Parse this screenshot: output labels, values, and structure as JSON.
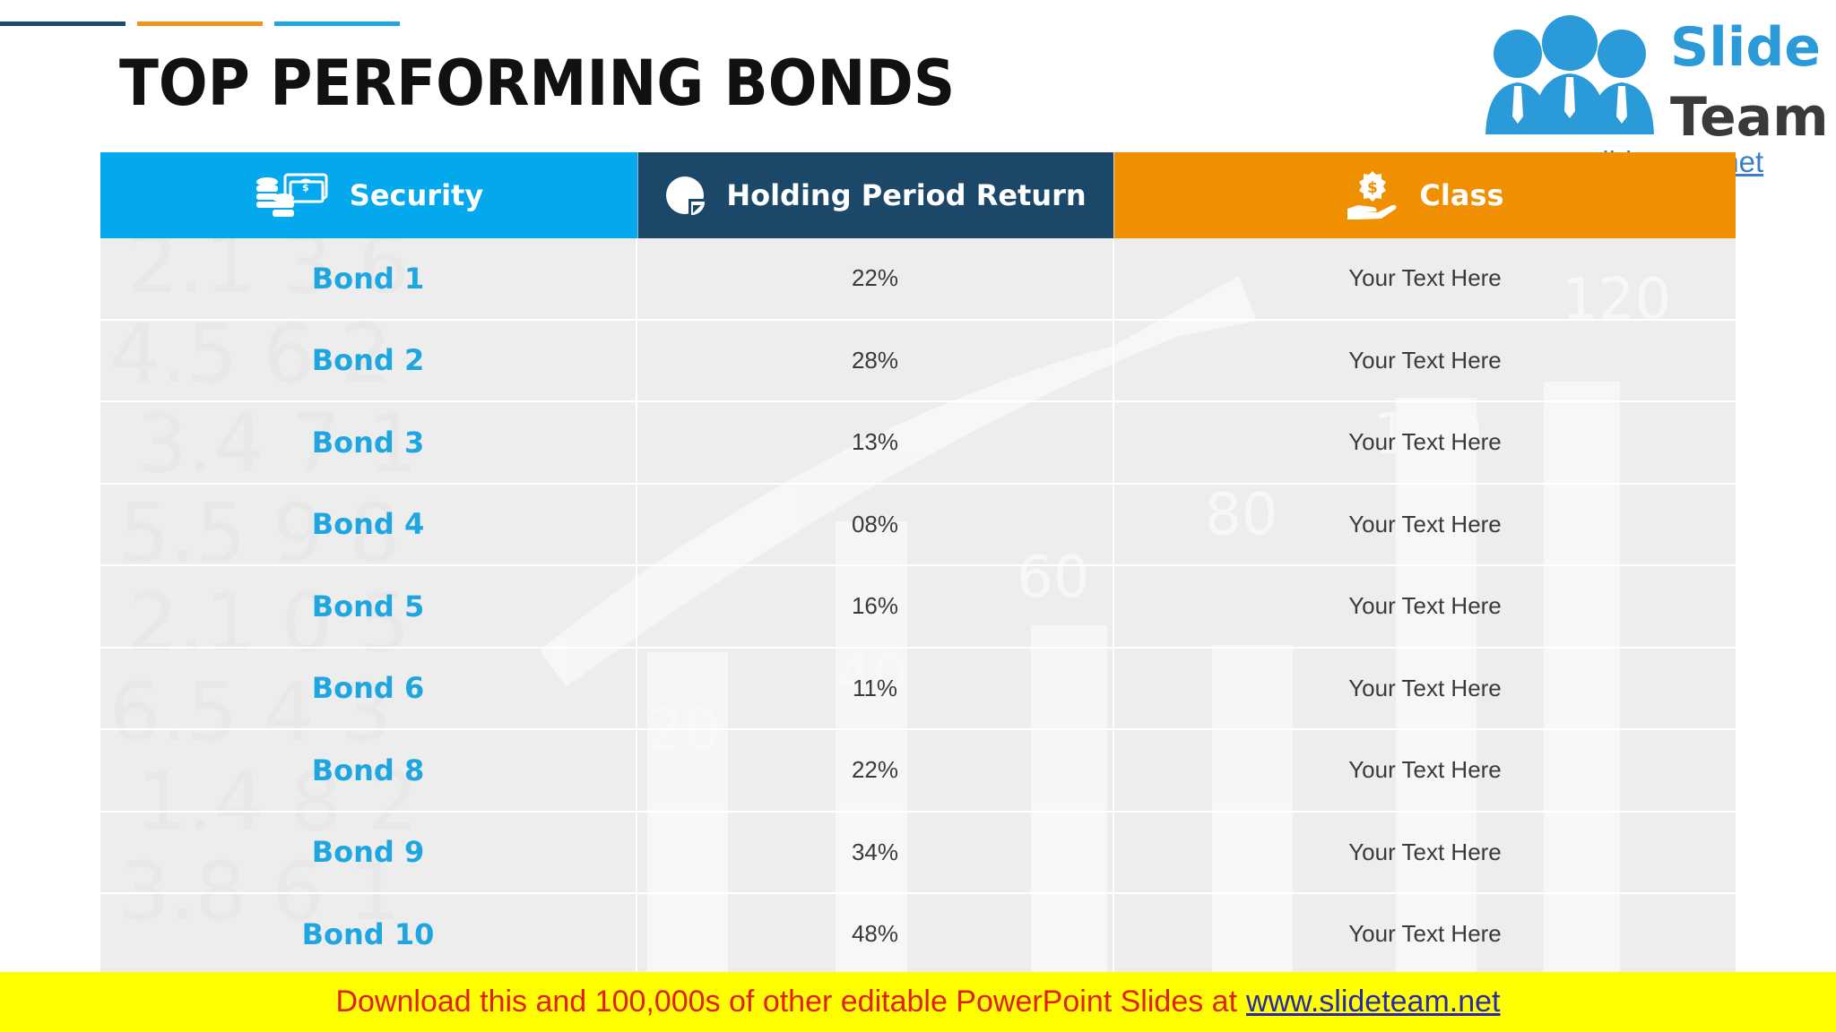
{
  "slide": {
    "title": "TOP PERFORMING BONDS"
  },
  "logo": {
    "word1": "Slide",
    "word2": "Team",
    "url": "www.slideteam.net"
  },
  "table": {
    "headers": {
      "security": "Security",
      "return": "Holding Period Return",
      "class": "Class"
    },
    "rows": [
      {
        "security": "Bond 1",
        "return": "22%",
        "class": "Your Text Here"
      },
      {
        "security": "Bond 2",
        "return": "28%",
        "class": "Your Text Here"
      },
      {
        "security": "Bond 3",
        "return": "13%",
        "class": "Your Text Here"
      },
      {
        "security": "Bond 4",
        "return": "08%",
        "class": "Your Text Here"
      },
      {
        "security": "Bond 5",
        "return": "16%",
        "class": "Your Text Here"
      },
      {
        "security": "Bond 6",
        "return": "11%",
        "class": "Your Text Here"
      },
      {
        "security": "Bond 8",
        "return": "22%",
        "class": "Your Text Here"
      },
      {
        "security": "Bond 9",
        "return": "34%",
        "class": "Your Text Here"
      },
      {
        "security": "Bond 10",
        "return": "48%",
        "class": "Your Text Here"
      }
    ]
  },
  "banner": {
    "text": "Download this and 100,000s of other editable PowerPoint Slides at",
    "link": "www.slideteam.net"
  },
  "icons": {
    "security": "money-coins-icon",
    "return": "pie-chart-icon",
    "class": "hand-dollar-icon"
  },
  "colors": {
    "security_header": "#03a9ec",
    "return_header": "#1b4868",
    "class_header": "#f08f00",
    "bond_text": "#1ea6e0",
    "banner_bg": "#ffff00",
    "banner_text": "#e0201b"
  }
}
